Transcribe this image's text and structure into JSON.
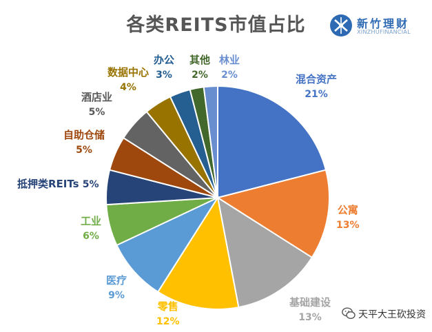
{
  "title": "各类REITS市值占比",
  "logo": {
    "name": "新竹理财",
    "subtitle": "XINZHUFINANCIAL"
  },
  "watermark": {
    "text": "天平大王砍投资"
  },
  "chart_data": {
    "type": "pie",
    "title": "各类REITS市值占比",
    "start_angle_deg": 0,
    "direction": "clockwise",
    "slices": [
      {
        "name": "混合资产",
        "value": 21,
        "label": "21%",
        "color": "#4472c4"
      },
      {
        "name": "公寓",
        "value": 13,
        "label": "13%",
        "color": "#ed7d31"
      },
      {
        "name": "基础建设",
        "value": 13,
        "label": "13%",
        "color": "#a5a5a5"
      },
      {
        "name": "零售",
        "value": 12,
        "label": "12%",
        "color": "#ffc000"
      },
      {
        "name": "医疗",
        "value": 9,
        "label": "9%",
        "color": "#5b9bd5"
      },
      {
        "name": "工业",
        "value": 6,
        "label": "6%",
        "color": "#70ad47"
      },
      {
        "name": "抵押类REITs",
        "value": 5,
        "label": "5%",
        "color": "#264478"
      },
      {
        "name": "自助仓储",
        "value": 5,
        "label": "5%",
        "color": "#9e480e"
      },
      {
        "name": "酒店业",
        "value": 5,
        "label": "5%",
        "color": "#636363"
      },
      {
        "name": "数据中心",
        "value": 4,
        "label": "4%",
        "color": "#997300"
      },
      {
        "name": "办公",
        "value": 3,
        "label": "3%",
        "color": "#255e91"
      },
      {
        "name": "其他",
        "value": 2,
        "label": "2%",
        "color": "#43682b"
      },
      {
        "name": "林业",
        "value": 2,
        "label": "2%",
        "color": "#698ed0"
      }
    ]
  }
}
